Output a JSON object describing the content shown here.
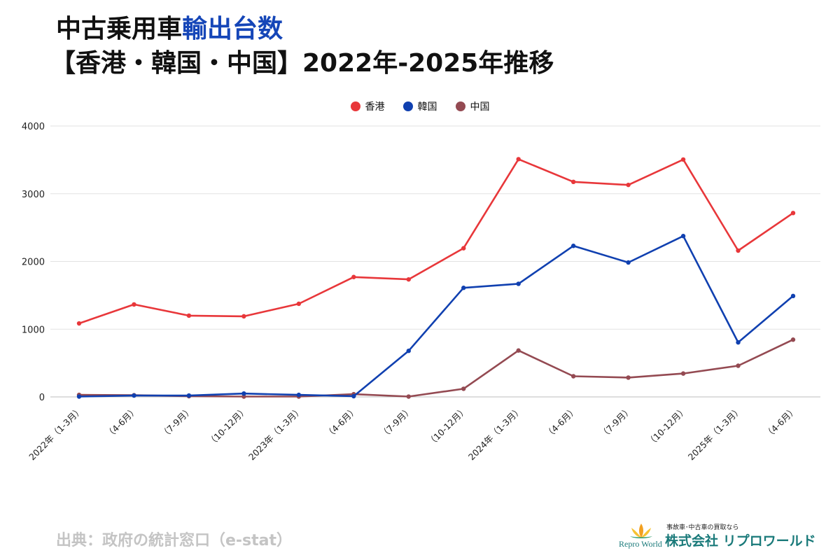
{
  "title": {
    "line1_prefix": "中古乗用車",
    "line1_highlight": "輸出台数",
    "line2": "【香港・韓国・中国】2022年-2025年推移"
  },
  "source": "出典：政府の統計窓口（e-stat）",
  "logo": {
    "tagline": "事故車･中古車の買取なら",
    "name": "株式会社 リプロワールド",
    "english": "Repro World"
  },
  "chart_data": {
    "type": "line",
    "categories": [
      "2022年（1-3月）",
      "（4-6月）",
      "（7-9月）",
      "（10-12月）",
      "2023年（1-3月）",
      "（4-6月）",
      "（7-9月）",
      "（10-12月）",
      "2024年（1-3月）",
      "（4-6月）",
      "（7-9月）",
      "（10-12月）",
      "2025年（1-3月）",
      "（4-6月）"
    ],
    "series": [
      {
        "name": "香港",
        "color": "#e8373a",
        "values": [
          1085,
          1365,
          1200,
          1190,
          1375,
          1770,
          1735,
          2195,
          3510,
          3175,
          3130,
          3505,
          2160,
          2715
        ]
      },
      {
        "name": "韓国",
        "color": "#1040b0",
        "values": [
          5,
          20,
          20,
          50,
          30,
          10,
          680,
          1610,
          1670,
          2230,
          1985,
          2375,
          805,
          1490
        ]
      },
      {
        "name": "中国",
        "color": "#944a52",
        "values": [
          30,
          25,
          10,
          5,
          5,
          40,
          5,
          120,
          685,
          305,
          285,
          345,
          460,
          845
        ]
      }
    ],
    "ylim": [
      0,
      4000
    ],
    "yticks": [
      0,
      1000,
      2000,
      3000,
      4000
    ],
    "grid": true,
    "legend_position": "top-center"
  }
}
